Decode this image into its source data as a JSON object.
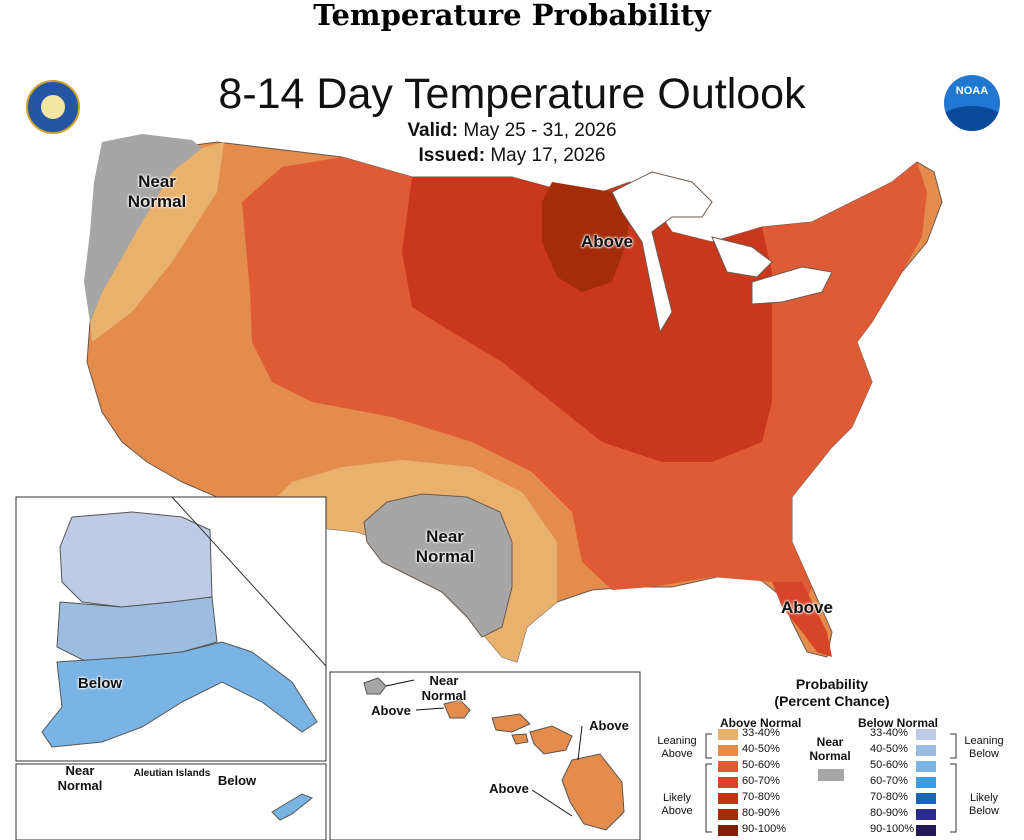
{
  "page": {
    "header": "Temperature Probability"
  },
  "map": {
    "title": "8-14 Day Temperature Outlook",
    "valid_label": "Valid:",
    "valid_value": "May 25 - 31, 2026",
    "issued_label": "Issued:",
    "issued_value": "May 17, 2026",
    "logos": {
      "left": "department-of-commerce-seal",
      "right": "noaa-logo",
      "right_text": "NOAA"
    },
    "labels": {
      "nw_near": "Near",
      "nw_normal": "Normal",
      "mw_above": "Above",
      "tx_near": "Near",
      "tx_normal": "Normal",
      "fl_above": "Above",
      "ak_below": "Below",
      "aleutian_near": "Near",
      "aleutian_normal": "Normal",
      "aleutian_islands": "Aleutian Islands",
      "aleutian_below": "Below",
      "hi_near": "Near",
      "hi_normal": "Normal",
      "hi_above_west": "Above",
      "hi_above_east": "Above",
      "hi_above_south": "Above"
    }
  },
  "legend": {
    "title_line1": "Probability",
    "title_line2": "(Percent Chance)",
    "above_header": "Above Normal",
    "below_header": "Below Normal",
    "near_line1": "Near",
    "near_line2": "Normal",
    "near_color": "#a6a6a6",
    "leaning_above_1": "Leaning",
    "leaning_above_2": "Above",
    "likely_above_1": "Likely",
    "likely_above_2": "Above",
    "leaning_below_1": "Leaning",
    "leaning_below_2": "Below",
    "likely_below_1": "Likely",
    "likely_below_2": "Below",
    "above_ranges": [
      "33-40%",
      "40-50%",
      "50-60%",
      "60-70%",
      "70-80%",
      "80-90%",
      "90-100%"
    ],
    "above_colors": [
      "#e8b16e",
      "#e48c4c",
      "#df5b35",
      "#d8442a",
      "#c13514",
      "#a42c09",
      "#7d1f05"
    ],
    "below_ranges": [
      "33-40%",
      "40-50%",
      "50-60%",
      "60-70%",
      "70-80%",
      "80-90%",
      "90-100%"
    ],
    "below_colors": [
      "#bfcbe6",
      "#9dbde0",
      "#79b4e4",
      "#3d9ddc",
      "#1a66b5",
      "#2b2b8a",
      "#231a55"
    ]
  }
}
